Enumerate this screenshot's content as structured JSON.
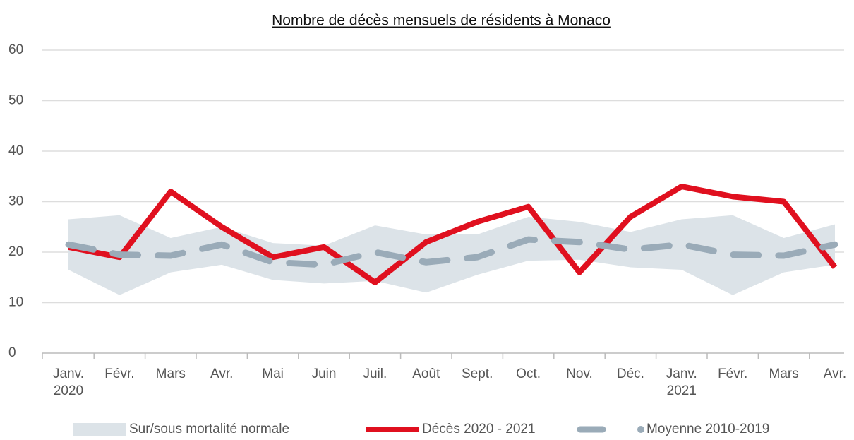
{
  "chart_data": {
    "type": "line",
    "title": "Nombre de décès mensuels de résidents à Monaco",
    "categories": [
      "Janv.\n2020",
      "Févr.",
      "Mars",
      "Avr.",
      "Mai",
      "Juin",
      "Juil.",
      "Août",
      "Sept.",
      "Oct.",
      "Nov.",
      "Déc.",
      "Janv.\n2021",
      "Févr.",
      "Mars",
      "Avr."
    ],
    "ylim": [
      0,
      60
    ],
    "yticks": [
      0,
      10,
      20,
      30,
      40,
      50,
      60
    ],
    "grid": true,
    "legend": "bottom",
    "series": [
      {
        "name": "Sur/sous mortalité normale",
        "type": "band",
        "color": "#dce3e8",
        "upper": [
          26.5,
          27.3,
          22.8,
          25,
          21.8,
          21.3,
          25.3,
          23.5,
          23.5,
          27,
          26,
          24,
          26.5,
          27.3,
          22.8,
          25.5
        ],
        "lower": [
          16.5,
          11.5,
          16,
          17.5,
          14.5,
          13.8,
          14.3,
          12,
          15.5,
          18.3,
          18.5,
          17,
          16.5,
          11.5,
          16,
          17.5
        ]
      },
      {
        "name": "Décès 2020 - 2021",
        "color": "#e0101f",
        "values": [
          21,
          19,
          32,
          25,
          19,
          21,
          14,
          22,
          26,
          29,
          16,
          27,
          33,
          31,
          30,
          17
        ]
      },
      {
        "name": "Moyenne 2010-2019",
        "color": "#9aabb8",
        "dashed": true,
        "values": [
          21.5,
          19.5,
          19.3,
          21.5,
          18,
          17.5,
          20,
          18,
          19,
          22.5,
          22,
          20.5,
          21.5,
          19.5,
          19.3,
          21.5
        ]
      }
    ]
  }
}
